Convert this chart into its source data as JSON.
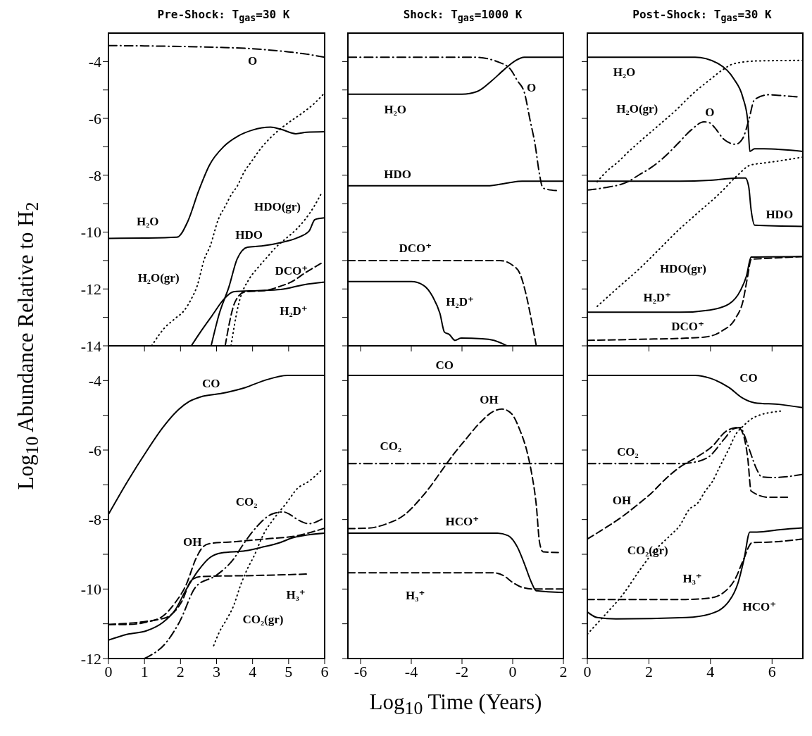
{
  "chart_data": [
    {
      "type": "line",
      "title": "Pre-Shock: T$_{gas}$=30 K",
      "ylabel": "Log$_{10}$ Abundance Relative to H$_{2}$",
      "xlim": [
        0,
        6
      ],
      "ylim": [
        -14,
        -3
      ],
      "xticks": [
        0,
        1,
        2,
        3,
        4,
        5,
        6
      ],
      "yticks": [
        -14,
        {
          "value": -13,
          "label": null
        },
        -12,
        {
          "value": -11,
          "label": null
        },
        -10,
        {
          "value": -9,
          "label": null
        },
        -8,
        {
          "value": -7,
          "label": null
        },
        -6,
        {
          "value": -5,
          "label": null
        },
        -4
      ],
      "tick_labels": "y",
      "series": [
        {
          "name": "O",
          "color": "#000000",
          "line_style": "dashdot",
          "x": [
            0,
            1,
            2,
            3,
            4,
            4.5,
            5,
            5.5,
            6
          ],
          "values": [
            -3.44,
            -3.45,
            -3.47,
            -3.5,
            -3.55,
            -3.6,
            -3.66,
            -3.74,
            -3.85
          ]
        },
        {
          "name": "H₂O",
          "color": "#000000",
          "line_style": "solid",
          "x": [
            0,
            1,
            1.9,
            2.2,
            2.5,
            2.8,
            3.2,
            3.6,
            4.0,
            4.5,
            4.8,
            5.2,
            5.5,
            6
          ],
          "values": [
            -10.22,
            -10.21,
            -10.18,
            -9.63,
            -8.56,
            -7.65,
            -6.99,
            -6.62,
            -6.41,
            -6.31,
            -6.39,
            -6.54,
            -6.49,
            -6.47
          ]
        },
        {
          "name": "H₂O(gr)",
          "color": "#000000",
          "line_style": "dotted",
          "x": [
            1.2,
            1.55,
            1.84,
            2.1,
            2.3,
            2.46,
            2.66,
            2.82,
            3.05,
            3.24,
            3.41,
            3.57,
            3.76,
            3.99,
            4.22,
            4.48,
            4.77,
            5.03,
            5.36,
            5.69,
            5.95
          ],
          "values": [
            -14,
            -13.38,
            -13.05,
            -12.76,
            -12.35,
            -11.9,
            -10.95,
            -10.5,
            -9.55,
            -9.09,
            -8.68,
            -8.39,
            -7.9,
            -7.48,
            -7.07,
            -6.7,
            -6.37,
            -6.12,
            -5.83,
            -5.5,
            -5.17
          ]
        },
        {
          "name": "HDO",
          "color": "#000000",
          "line_style": "solid",
          "x": [
            2.85,
            3.08,
            3.34,
            3.57,
            3.86,
            4.25,
            4.78,
            5.24,
            5.57,
            5.73,
            6
          ],
          "values": [
            -14,
            -12.85,
            -11.94,
            -10.95,
            -10.53,
            -10.49,
            -10.37,
            -10.2,
            -9.96,
            -9.56,
            -9.5
          ]
        },
        {
          "name": "HDO(gr)",
          "color": "#000000",
          "line_style": "dotted",
          "x": [
            3.4,
            3.6,
            3.93,
            4.13,
            4.39,
            4.65,
            4.95,
            5.24,
            5.69,
            5.89
          ],
          "values": [
            -14,
            -12.6,
            -11.6,
            -11.28,
            -10.9,
            -10.53,
            -10.2,
            -9.87,
            -9.13,
            -8.68
          ]
        },
        {
          "name": "DCO⁺",
          "color": "#000000",
          "line_style": "dashed",
          "x": [
            3.24,
            3.34,
            3.47,
            3.6,
            3.8,
            4.32,
            4.87,
            5.0,
            5.5,
            5.9
          ],
          "values": [
            -14,
            -13.3,
            -12.6,
            -12.27,
            -12.1,
            -12.06,
            -11.86,
            -11.8,
            -11.4,
            -11.1
          ]
        },
        {
          "name": "H₂D⁺",
          "color": "#000000",
          "line_style": "solid",
          "x": [
            2.3,
            2.56,
            2.88,
            3.21,
            3.47,
            4.13,
            4.78,
            5.43,
            6
          ],
          "values": [
            -14,
            -13.5,
            -12.93,
            -12.35,
            -12.1,
            -12.06,
            -12.02,
            -11.85,
            -11.76
          ]
        }
      ]
    },
    {
      "type": "line",
      "title": "Shock: T$_{gas}$=1000 K",
      "xlim": [
        -6.5,
        2
      ],
      "ylim": [
        -14,
        -3
      ],
      "xticks": [
        -6,
        -4,
        -2,
        0,
        2
      ],
      "yticks": [
        -14,
        {
          "value": -13,
          "label": null
        },
        -12,
        {
          "value": -11,
          "label": null
        },
        -10,
        {
          "value": -9,
          "label": null
        },
        -8,
        {
          "value": -7,
          "label": null
        },
        -6,
        {
          "value": -5,
          "label": null
        },
        -4
      ],
      "tick_labels": false,
      "series": [
        {
          "name": "O",
          "color": "#000000",
          "line_style": "dashdot",
          "x": [
            -6.5,
            -1.5,
            -0.56,
            -0.1,
            0.19,
            0.46,
            0.69,
            0.88,
            1.06,
            1.16,
            1.25,
            1.72
          ],
          "values": [
            -3.85,
            -3.85,
            -4.02,
            -4.26,
            -4.68,
            -5.09,
            -6.08,
            -6.9,
            -7.98,
            -8.39,
            -8.47,
            -8.54
          ]
        },
        {
          "name": "H₂O",
          "color": "#000000",
          "line_style": "solid",
          "x": [
            -6.5,
            -2,
            -1.39,
            -0.83,
            -0.37,
            0.09,
            0.46,
            2
          ],
          "values": [
            -5.15,
            -5.15,
            -5.05,
            -4.68,
            -4.31,
            -3.98,
            -3.85,
            -3.85
          ]
        },
        {
          "name": "HDO",
          "color": "#000000",
          "line_style": "solid",
          "x": [
            -6.5,
            -1,
            -0.19,
            0.37,
            2
          ],
          "values": [
            -8.37,
            -8.37,
            -8.27,
            -8.21,
            -8.21
          ]
        },
        {
          "name": "DCO⁺",
          "color": "#000000",
          "line_style": "dashed",
          "x": [
            -6.5,
            -0.5,
            0,
            0.28,
            0.55,
            0.74,
            0.93
          ],
          "values": [
            -11,
            -11,
            -11.17,
            -11.45,
            -12.28,
            -13.1,
            -14
          ]
        },
        {
          "name": "H₂D⁺",
          "color": "#000000",
          "line_style": "solid",
          "x": [
            -6.5,
            -4,
            -3.52,
            -3.15,
            -2.87,
            -2.69,
            -2.5,
            -2.27,
            -2.04,
            -1.2,
            -0.74,
            -0.23
          ],
          "values": [
            -11.74,
            -11.74,
            -11.87,
            -12.28,
            -12.86,
            -13.52,
            -13.6,
            -13.81,
            -13.73,
            -13.75,
            -13.81,
            -14
          ]
        }
      ]
    },
    {
      "type": "line",
      "title": "Post-Shock: T$_{gas}$=30 K",
      "xlim": [
        0,
        7
      ],
      "ylim": [
        -14,
        -3
      ],
      "xticks": [
        0,
        2,
        4,
        6
      ],
      "yticks": [
        -14,
        {
          "value": -13,
          "label": null
        },
        -12,
        {
          "value": -11,
          "label": null
        },
        -10,
        {
          "value": -9,
          "label": null
        },
        -8,
        {
          "value": -7,
          "label": null
        },
        -6,
        {
          "value": -5,
          "label": null
        },
        -4
      ],
      "tick_labels": false,
      "series": [
        {
          "name": "H₂O",
          "color": "#000000",
          "line_style": "solid",
          "x": [
            0,
            3.5,
            4.29,
            4.75,
            5.05,
            5.21,
            5.28,
            5.43,
            5.74,
            7
          ],
          "values": [
            -3.85,
            -3.85,
            -4.1,
            -4.6,
            -5.26,
            -6.08,
            -7.16,
            -7.07,
            -7.07,
            -7.16
          ]
        },
        {
          "name": "H₂O(gr)",
          "color": "#000000",
          "line_style": "dotted",
          "x": [
            0.32,
            0.63,
            1.0,
            1.31,
            1.69,
            2.31,
            2.92,
            3.3,
            3.6,
            3.98,
            4.37,
            4.75,
            5.51,
            7
          ],
          "values": [
            -8.23,
            -7.86,
            -7.53,
            -7.2,
            -6.83,
            -6.25,
            -5.67,
            -5.26,
            -4.97,
            -4.64,
            -4.31,
            -4.08,
            -3.98,
            -3.96
          ]
        },
        {
          "name": "O",
          "color": "#000000",
          "line_style": "dashdot",
          "x": [
            0,
            0.55,
            1.31,
            1.69,
            2.07,
            2.46,
            2.92,
            3.37,
            3.79,
            3.98,
            4.14,
            4.44,
            4.82,
            5.05,
            5.24,
            5.43,
            5.89,
            6.35,
            6.81
          ],
          "values": [
            -8.52,
            -8.44,
            -8.23,
            -7.98,
            -7.73,
            -7.4,
            -6.91,
            -6.41,
            -6.12,
            -6.16,
            -6.33,
            -6.74,
            -6.91,
            -6.7,
            -6.08,
            -5.34,
            -5.17,
            -5.2,
            -5.24
          ]
        },
        {
          "name": "HDO",
          "color": "#000000",
          "line_style": "solid",
          "x": [
            0,
            3,
            3.98,
            4.9,
            5.13,
            5.24,
            5.32,
            5.44,
            7
          ],
          "values": [
            -8.21,
            -8.21,
            -8.18,
            -8.1,
            -8.1,
            -8.39,
            -9.22,
            -9.76,
            -9.8
          ]
        },
        {
          "name": "HDO(gr)",
          "color": "#000000",
          "line_style": "dotted",
          "x": [
            0.32,
            1.0,
            1.69,
            2.31,
            2.92,
            3.6,
            4.29,
            4.9,
            5.28,
            5.74,
            6.27,
            7
          ],
          "values": [
            -12.61,
            -11.95,
            -11.29,
            -10.63,
            -9.97,
            -9.31,
            -8.65,
            -7.98,
            -7.65,
            -7.57,
            -7.49,
            -7.36
          ]
        },
        {
          "name": "H₂D⁺",
          "color": "#000000",
          "line_style": "solid",
          "x": [
            0,
            3,
            3.98,
            4.6,
            4.98,
            5.17,
            5.32,
            7
          ],
          "values": [
            -12.82,
            -12.82,
            -12.74,
            -12.53,
            -12.04,
            -11.54,
            -10.88,
            -10.86
          ]
        },
        {
          "name": "DCO⁺",
          "color": "#000000",
          "line_style": "dashed",
          "x": [
            0,
            1.69,
            3.22,
            3.83,
            4.37,
            4.82,
            5.05,
            5.21,
            5.32,
            5.89,
            7
          ],
          "values": [
            -13.81,
            -13.77,
            -13.73,
            -13.69,
            -13.48,
            -13.02,
            -12.45,
            -11.54,
            -10.96,
            -10.92,
            -10.86
          ]
        }
      ]
    },
    {
      "type": "line",
      "xlim": [
        0,
        6
      ],
      "ylim": [
        -12,
        -3
      ],
      "xticks": [
        0,
        1,
        2,
        3,
        4,
        5,
        6
      ],
      "yticks": [
        -12,
        {
          "value": -11,
          "label": null
        },
        -10,
        {
          "value": -9,
          "label": null
        },
        -8,
        {
          "value": -7,
          "label": null
        },
        -6,
        {
          "value": -5,
          "label": null
        },
        -4
      ],
      "series": [
        {
          "name": "CO",
          "color": "#000000",
          "line_style": "solid",
          "x": [
            0,
            0.53,
            1.06,
            1.51,
            1.9,
            2.23,
            2.56,
            3.14,
            3.8,
            4.32,
            4.97,
            6
          ],
          "values": [
            -7.85,
            -6.9,
            -6.03,
            -5.35,
            -4.88,
            -4.61,
            -4.47,
            -4.37,
            -4.2,
            -4.0,
            -3.85,
            -3.85
          ]
        },
        {
          "name": "CO₂",
          "color": "#000000",
          "line_style": "dashdot",
          "x": [
            1.0,
            1.64,
            1.97,
            2.43,
            3.0,
            3.47,
            3.73,
            4.13,
            4.52,
            4.85,
            5.03,
            5.23,
            5.56,
            5.92
          ],
          "values": [
            -12,
            -11.49,
            -10.95,
            -9.93,
            -9.6,
            -9.14,
            -8.73,
            -8.19,
            -7.85,
            -7.78,
            -7.85,
            -7.99,
            -8.12,
            -7.99
          ]
        },
        {
          "name": "CO₂(gr)",
          "color": "#000000",
          "line_style": "dotted",
          "x": [
            2.92,
            3.08,
            3.27,
            3.47,
            3.67,
            3.86,
            4.03,
            4.32,
            4.58,
            4.95,
            5.24,
            5.56,
            5.89
          ],
          "values": [
            -11.63,
            -11.23,
            -10.89,
            -10.49,
            -9.88,
            -9.41,
            -9.07,
            -8.39,
            -7.99,
            -7.51,
            -7.11,
            -6.9,
            -6.6
          ]
        },
        {
          "name": "OH",
          "color": "#000000",
          "line_style": "dashed",
          "x": [
            0,
            0.53,
            1.06,
            1.51,
            1.84,
            2.16,
            2.43,
            2.62,
            2.82,
            3.47,
            4.45,
            5.1,
            6
          ],
          "values": [
            -11.02,
            -11.02,
            -10.95,
            -10.78,
            -10.41,
            -9.87,
            -9.12,
            -8.79,
            -8.69,
            -8.64,
            -8.55,
            -8.49,
            -8.25
          ]
        },
        {
          "color": "#000000",
          "line_style": "solid",
          "x": [
            0,
            0.53,
            1.06,
            1.51,
            1.84,
            2.16,
            2.49,
            2.82,
            3.14,
            3.8,
            4.25,
            4.77,
            5.1,
            6
          ],
          "values": [
            -11.47,
            -11.3,
            -11.2,
            -10.96,
            -10.62,
            -10.01,
            -9.47,
            -9.09,
            -8.96,
            -8.9,
            -8.8,
            -8.66,
            -8.53,
            -8.39
          ]
        },
        {
          "name": "H₃⁺",
          "color": "#000000",
          "line_style": "dashed",
          "x": [
            0,
            1.51,
            2.04,
            2.3,
            2.56,
            4.13,
            5.49
          ],
          "values": [
            -11.02,
            -10.85,
            -10.35,
            -9.75,
            -9.64,
            -9.61,
            -9.57
          ]
        }
      ]
    },
    {
      "type": "line",
      "xlabel": "Log$_{10}$ Time (Years)",
      "xlim": [
        -6.5,
        2
      ],
      "ylim": [
        -12,
        -3
      ],
      "xticks": [
        -6,
        -4,
        -2,
        0,
        2
      ],
      "yticks": [
        -12,
        {
          "value": -11,
          "label": null
        },
        -10,
        {
          "value": -9,
          "label": null
        },
        -8,
        {
          "value": -7,
          "label": null
        },
        -6,
        {
          "value": -5,
          "label": null
        },
        -4
      ],
      "tick_labels": "x",
      "series": [
        {
          "name": "CO",
          "color": "#000000",
          "line_style": "solid",
          "x": [
            -6.5,
            2
          ],
          "values": [
            -3.85,
            -3.85
          ]
        },
        {
          "name": "CO₂",
          "color": "#000000",
          "line_style": "dashdot",
          "x": [
            -6.5,
            2
          ],
          "values": [
            -6.39,
            -6.39
          ]
        },
        {
          "name": "OH",
          "color": "#000000",
          "line_style": "dashed",
          "x": [
            -6.5,
            -5.74,
            -5,
            -4.26,
            -3.7,
            -3.24,
            -2.78,
            -2.31,
            -1.85,
            -1.3,
            -0.74,
            -0.42,
            -0.05,
            0.28,
            0.56,
            0.74,
            0.93,
            1.06,
            1.2,
            1.8
          ],
          "values": [
            -8.26,
            -8.25,
            -8.13,
            -7.86,
            -7.45,
            -7.04,
            -6.57,
            -6.1,
            -5.69,
            -5.22,
            -4.88,
            -4.82,
            -4.95,
            -5.42,
            -6.03,
            -6.64,
            -7.58,
            -8.66,
            -8.93,
            -8.95
          ]
        },
        {
          "name": "HCO⁺",
          "color": "#000000",
          "line_style": "solid",
          "x": [
            -6.5,
            -0.6,
            -0.19,
            0.19,
            0.46,
            0.74,
            0.93,
            2
          ],
          "values": [
            -8.39,
            -8.39,
            -8.46,
            -8.8,
            -9.27,
            -9.81,
            -10.05,
            -10.1
          ]
        },
        {
          "name": "H₃⁺",
          "color": "#000000",
          "line_style": "dashed",
          "x": [
            -6.5,
            -0.8,
            -0.37,
            0,
            0.37,
            0.83,
            2
          ],
          "values": [
            -9.53,
            -9.53,
            -9.61,
            -9.81,
            -9.95,
            -10.0,
            -10.0
          ]
        }
      ]
    },
    {
      "type": "line",
      "xlim": [
        0,
        7
      ],
      "ylim": [
        -12,
        -3
      ],
      "xticks": [
        0,
        2,
        4,
        6
      ],
      "yticks": [
        -12,
        {
          "value": -11,
          "label": null
        },
        -10,
        {
          "value": -9,
          "label": null
        },
        -8,
        {
          "value": -7,
          "label": null
        },
        -6,
        {
          "value": -5,
          "label": null
        },
        -4
      ],
      "tick_labels": "x",
      "series": [
        {
          "name": "CO",
          "color": "#000000",
          "line_style": "solid",
          "x": [
            0,
            3.5,
            3.98,
            4.6,
            5.05,
            5.44,
            6.27,
            7
          ],
          "values": [
            -3.85,
            -3.85,
            -3.93,
            -4.2,
            -4.51,
            -4.64,
            -4.69,
            -4.78
          ]
        },
        {
          "name": "CO₂",
          "color": "#000000",
          "line_style": "dashdot",
          "x": [
            0,
            3.0,
            3.53,
            3.98,
            4.44,
            4.75,
            4.98,
            5.09,
            5.28,
            5.51,
            5.66,
            6.05,
            7
          ],
          "values": [
            -6.39,
            -6.39,
            -6.34,
            -6.17,
            -5.69,
            -5.39,
            -5.35,
            -5.55,
            -6.03,
            -6.57,
            -6.77,
            -6.79,
            -6.7
          ]
        },
        {
          "name": "OH",
          "color": "#000000",
          "line_style": "dashed",
          "x": [
            0,
            0.55,
            1.08,
            1.62,
            2.08,
            2.53,
            2.99,
            3.56,
            4.06,
            4.52,
            4.9,
            5.05,
            5.21,
            5.32,
            5.89,
            6.5
          ],
          "values": [
            -8.56,
            -8.26,
            -7.95,
            -7.58,
            -7.24,
            -6.84,
            -6.5,
            -6.2,
            -5.89,
            -5.45,
            -5.35,
            -5.52,
            -6.23,
            -7.18,
            -7.36,
            -7.36
          ]
        },
        {
          "name": "CO₂(gr)",
          "color": "#000000",
          "line_style": "dotted",
          "x": [
            0,
            0.32,
            0.63,
            1.16,
            1.69,
            2.15,
            2.69,
            2.99,
            3.3,
            3.6,
            3.83,
            4.06,
            4.29,
            4.6,
            4.82,
            5.05,
            5.44,
            6.27
          ],
          "values": [
            -11.3,
            -10.99,
            -10.69,
            -10.15,
            -9.47,
            -8.93,
            -8.46,
            -8.19,
            -7.72,
            -7.51,
            -7.18,
            -6.91,
            -6.5,
            -5.96,
            -5.55,
            -5.32,
            -5.05,
            -4.88
          ]
        },
        {
          "name": "HCO⁺",
          "color": "#000000",
          "line_style": "solid",
          "x": [
            0,
            0.32,
            0.93,
            3.22,
            3.98,
            4.6,
            4.9,
            5.09,
            5.28,
            5.51,
            6.27,
            7
          ],
          "values": [
            -10.66,
            -10.82,
            -10.86,
            -10.82,
            -10.72,
            -10.35,
            -9.81,
            -9.14,
            -8.36,
            -8.36,
            -8.29,
            -8.24
          ]
        },
        {
          "name": "H₃⁺",
          "color": "#000000",
          "line_style": "dashed",
          "x": [
            0,
            3.2,
            3.98,
            4.44,
            4.82,
            5.05,
            5.36,
            5.89,
            7
          ],
          "values": [
            -10.3,
            -10.3,
            -10.26,
            -10.09,
            -9.68,
            -9.2,
            -8.66,
            -8.65,
            -8.56
          ]
        }
      ]
    }
  ]
}
